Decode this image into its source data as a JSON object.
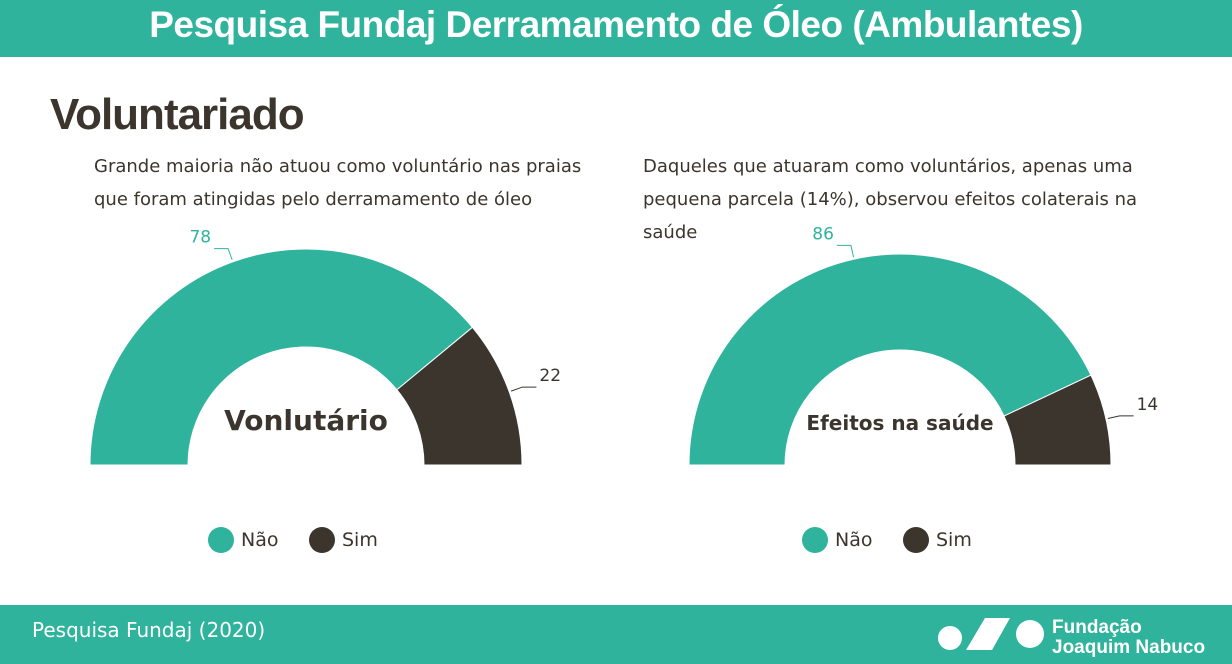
{
  "header": {
    "title": "Pesquisa Fundaj Derramamento de Óleo (Ambulantes)",
    "section": "Voluntariado"
  },
  "chart_data": [
    {
      "type": "half-donut",
      "subtitle": "Grande maioria não atuou como voluntário nas praias que foram atingidas pelo derramamento de óleo",
      "center_label": "Vonlutário",
      "categories": [
        "Não",
        "Sim"
      ],
      "values": [
        78,
        22
      ],
      "colors": [
        "#2fb39c",
        "#3b352d"
      ]
    },
    {
      "type": "half-donut",
      "subtitle": "Daqueles que atuaram como voluntários, apenas uma pequena parcela (14%), observou efeitos colaterais na saúde",
      "center_label": "Efeitos na saúde",
      "categories": [
        "Não",
        "Sim"
      ],
      "values": [
        86,
        14
      ],
      "colors": [
        "#2fb39c",
        "#3b352d"
      ]
    }
  ],
  "footer": {
    "source": "Pesquisa Fundaj (2020)",
    "logo_line1": "Fundação",
    "logo_line2": "Joaquim Nabuco"
  }
}
